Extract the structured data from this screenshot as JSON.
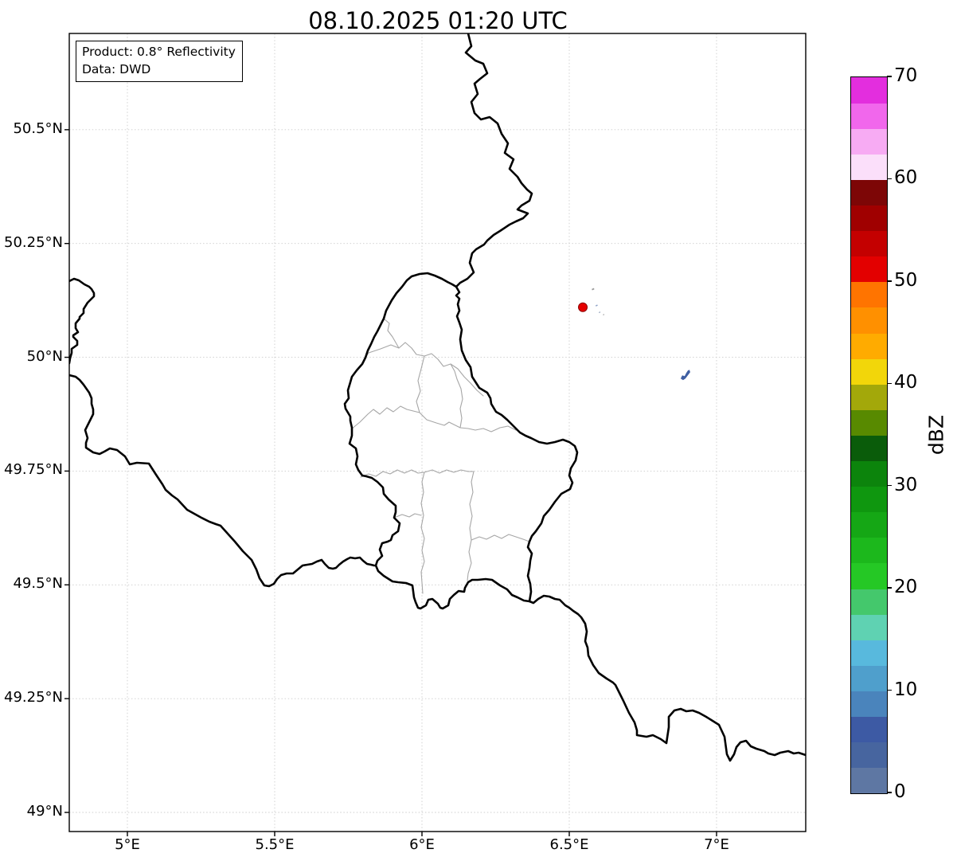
{
  "title": "08.10.2025 01:20 UTC",
  "info_box": {
    "line1": "Product: 0.8° Reflectivity",
    "line2": "Data: DWD"
  },
  "map": {
    "x_axis": {
      "ticks": [
        {
          "label": "5°E",
          "lon": 5.0
        },
        {
          "label": "5.5°E",
          "lon": 5.5
        },
        {
          "label": "6°E",
          "lon": 6.0
        },
        {
          "label": "6.5°E",
          "lon": 6.5
        },
        {
          "label": "7°E",
          "lon": 7.0
        }
      ]
    },
    "y_axis": {
      "ticks": [
        {
          "label": "49°N",
          "lat": 49.0
        },
        {
          "label": "49.25°N",
          "lat": 49.25
        },
        {
          "label": "49.5°N",
          "lat": 49.5
        },
        {
          "label": "49.75°N",
          "lat": 49.75
        },
        {
          "label": "50°N",
          "lat": 50.0
        },
        {
          "label": "50.25°N",
          "lat": 50.25
        },
        {
          "label": "50.5°N",
          "lat": 50.5
        }
      ]
    },
    "grid_color": "#cccccc",
    "border_color": "#000000",
    "canton_border_color": "#a6a6a6"
  },
  "colorbar": {
    "label": "dBZ",
    "min": 0,
    "max": 70,
    "ticks": [
      {
        "label": "0",
        "value": 0
      },
      {
        "label": "10",
        "value": 10
      },
      {
        "label": "20",
        "value": 20
      },
      {
        "label": "30",
        "value": 30
      },
      {
        "label": "40",
        "value": 40
      },
      {
        "label": "50",
        "value": 50
      },
      {
        "label": "60",
        "value": 60
      },
      {
        "label": "70",
        "value": 70
      }
    ],
    "segments": [
      {
        "v0": 0,
        "v1": 2.5,
        "color": "#5e77a3"
      },
      {
        "v0": 2.5,
        "v1": 5,
        "color": "#47659f"
      },
      {
        "v0": 5,
        "v1": 7.5,
        "color": "#3d5aa4"
      },
      {
        "v0": 7.5,
        "v1": 10,
        "color": "#4a84bc"
      },
      {
        "v0": 10,
        "v1": 12.5,
        "color": "#4f9fcc"
      },
      {
        "v0": 12.5,
        "v1": 15,
        "color": "#58b9dd"
      },
      {
        "v0": 15,
        "v1": 17.5,
        "color": "#5fd2b2"
      },
      {
        "v0": 17.5,
        "v1": 20,
        "color": "#44c86c"
      },
      {
        "v0": 20,
        "v1": 22.5,
        "color": "#25c825"
      },
      {
        "v0": 22.5,
        "v1": 25,
        "color": "#1cb81c"
      },
      {
        "v0": 25,
        "v1": 27.5,
        "color": "#15a715"
      },
      {
        "v0": 27.5,
        "v1": 30,
        "color": "#0f970f"
      },
      {
        "v0": 30,
        "v1": 32.5,
        "color": "#0c840c"
      },
      {
        "v0": 32.5,
        "v1": 35,
        "color": "#0a5c0a"
      },
      {
        "v0": 35,
        "v1": 37.5,
        "color": "#588a00"
      },
      {
        "v0": 37.5,
        "v1": 40,
        "color": "#a3a80a"
      },
      {
        "v0": 40,
        "v1": 42.5,
        "color": "#f2d60a"
      },
      {
        "v0": 42.5,
        "v1": 45,
        "color": "#ffab00"
      },
      {
        "v0": 45,
        "v1": 47.5,
        "color": "#ff9000"
      },
      {
        "v0": 47.5,
        "v1": 50,
        "color": "#ff7400"
      },
      {
        "v0": 50,
        "v1": 52.5,
        "color": "#e30000"
      },
      {
        "v0": 52.5,
        "v1": 55,
        "color": "#c40000"
      },
      {
        "v0": 55,
        "v1": 57.5,
        "color": "#a00000"
      },
      {
        "v0": 57.5,
        "v1": 60,
        "color": "#7d0606"
      },
      {
        "v0": 60,
        "v1": 62.5,
        "color": "#fbdffa"
      },
      {
        "v0": 62.5,
        "v1": 65,
        "color": "#f7abf3"
      },
      {
        "v0": 65,
        "v1": 67.5,
        "color": "#f167ec"
      },
      {
        "v0": 67.5,
        "v1": 70,
        "color": "#e32ede"
      }
    ]
  },
  "markers": {
    "radar_dot": {
      "lon": 6.546,
      "lat": 50.11,
      "color": "#e60000",
      "edge": "#8b0000"
    },
    "echo_blob": {
      "lon": 6.889,
      "lat": 49.962,
      "color": "#3f5fa2"
    },
    "specks": [
      {
        "lon": 6.576,
        "lat": 50.15,
        "color": "#9a9a9a",
        "size": 3
      },
      {
        "lon": 6.589,
        "lat": 50.114,
        "color": "#8fa3c8",
        "size": 2.5
      },
      {
        "lon": 6.6,
        "lat": 50.099,
        "color": "#9aa8c0",
        "size": 2
      },
      {
        "lon": 6.614,
        "lat": 50.094,
        "color": "#a8a8a8",
        "size": 1.6
      }
    ]
  }
}
